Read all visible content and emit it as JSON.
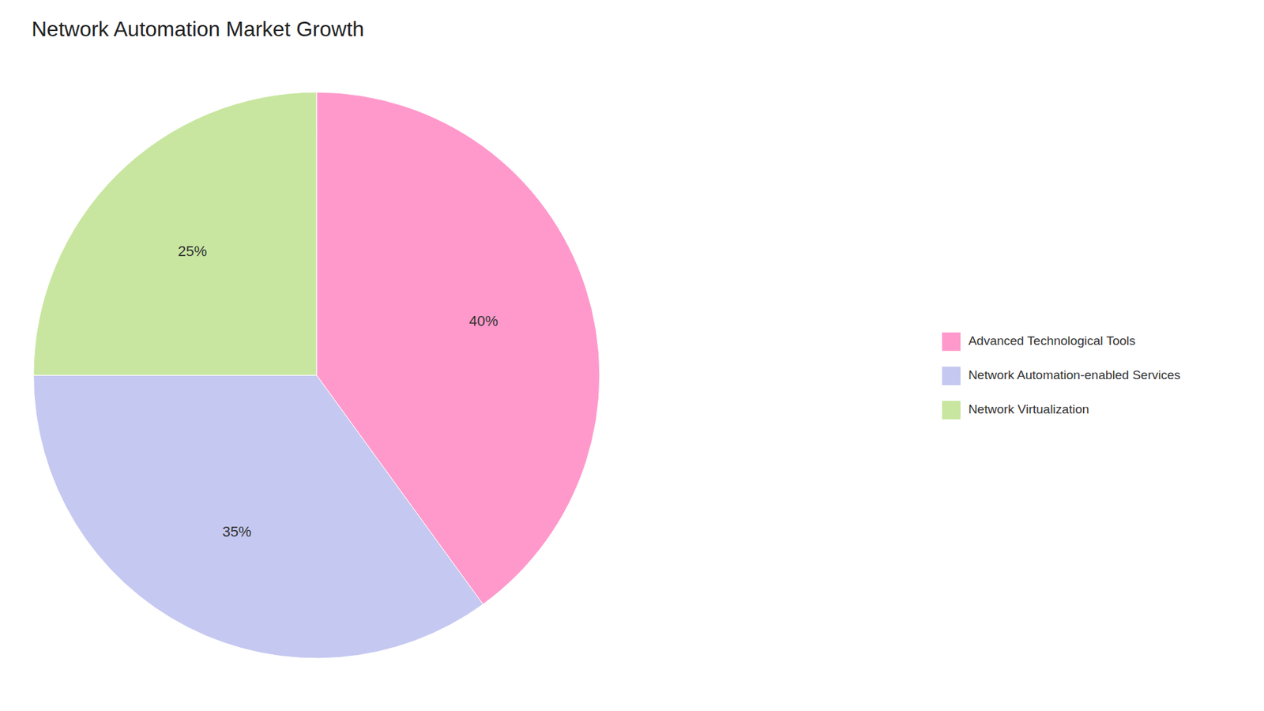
{
  "chart_data": {
    "type": "pie",
    "title": "Network Automation Market Growth",
    "categories": [
      "Advanced Technological Tools",
      "Network Automation-enabled Services",
      "Network Virtualization"
    ],
    "values": [
      40,
      35,
      25
    ],
    "value_labels": [
      "40%",
      "35%",
      "25%"
    ],
    "colors": [
      "#FF99CC",
      "#C5C8F0",
      "#C8E6A0"
    ],
    "data_labels": true,
    "legend": "right"
  }
}
